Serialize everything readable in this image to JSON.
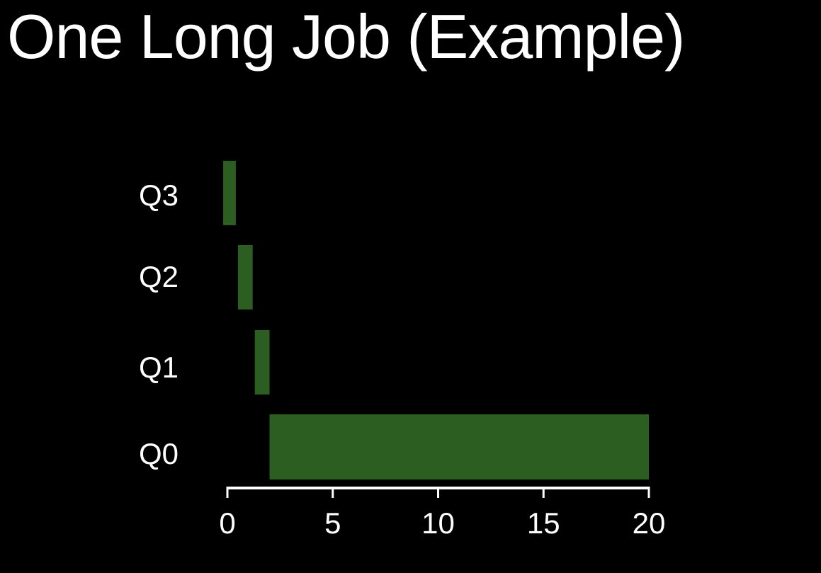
{
  "slide": {
    "title": "One Long Job (Example)"
  },
  "chart_data": {
    "type": "bar",
    "orientation": "horizontal",
    "title": "One Long Job (Example)",
    "xlabel": "",
    "ylabel": "",
    "categories": [
      "Q3",
      "Q2",
      "Q1",
      "Q0"
    ],
    "bars": [
      {
        "category": "Q3",
        "start": -0.2,
        "end": 0.4
      },
      {
        "category": "Q2",
        "start": 0.5,
        "end": 1.2
      },
      {
        "category": "Q1",
        "start": 1.3,
        "end": 2.0
      },
      {
        "category": "Q0",
        "start": 2.0,
        "end": 20.0
      }
    ],
    "xlim": [
      0,
      20
    ],
    "xticks": [
      0,
      5,
      10,
      15,
      20
    ],
    "xtick_labels": [
      "0",
      "5",
      "10",
      "15",
      "20"
    ],
    "grid": false,
    "legend": "none",
    "colors": {
      "background": "#000000",
      "bar": "#2d5e21",
      "text": "#ffffff",
      "axis": "#ffffff"
    }
  }
}
